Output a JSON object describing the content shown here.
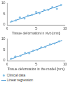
{
  "chart_data": [
    {
      "type": "scatter",
      "x_label": "Tissue deformation in vivo (mm)",
      "xlim": [
        0,
        10
      ],
      "xticks": [
        0,
        5,
        10
      ],
      "ylim": [
        0,
        10
      ],
      "yticks": [
        0,
        5,
        10
      ],
      "grid": false,
      "legend": false,
      "series": [
        {
          "name": "Clinical data",
          "type": "scatter",
          "marker": "circle",
          "color": "#7fbde4",
          "x": [
            0.8,
            1.5,
            2.2,
            3.0,
            3.6,
            4.3,
            5.0,
            5.6,
            6.4,
            7.1,
            7.8,
            8.6,
            9.3
          ],
          "values": [
            1.6,
            2.0,
            3.4,
            2.9,
            4.2,
            4.6,
            5.9,
            5.3,
            6.8,
            6.9,
            8.1,
            7.4,
            9.1
          ]
        },
        {
          "name": "Linear regression",
          "type": "line",
          "line_style": "solid",
          "color": "#3a8fd0",
          "x": [
            0.5,
            9.5
          ],
          "values": [
            1.2,
            9.2
          ]
        }
      ]
    },
    {
      "type": "scatter",
      "x_label": "Tissue deformation in the model (mm)",
      "xlim": [
        0,
        10
      ],
      "xticks": [
        0,
        5,
        10
      ],
      "ylim": [
        0,
        10
      ],
      "yticks": [
        0,
        5,
        10
      ],
      "grid": false,
      "legend": "bottom",
      "series": [
        {
          "name": "Clinical data",
          "type": "scatter",
          "marker": "circle",
          "color": "#7fbde4",
          "x": [
            0.7,
            1.4,
            2.3,
            3.1,
            3.8,
            4.5,
            5.2,
            5.9,
            6.6,
            7.4,
            8.2,
            9.0
          ],
          "values": [
            0.9,
            1.9,
            2.2,
            3.5,
            3.4,
            4.6,
            5.0,
            6.1,
            6.3,
            7.5,
            7.9,
            8.9
          ]
        },
        {
          "name": "Linear regression",
          "type": "line",
          "line_style": "solid",
          "color": "#3a8fd0",
          "x": [
            0.5,
            9.5
          ],
          "values": [
            0.6,
            9.3
          ]
        }
      ]
    }
  ]
}
